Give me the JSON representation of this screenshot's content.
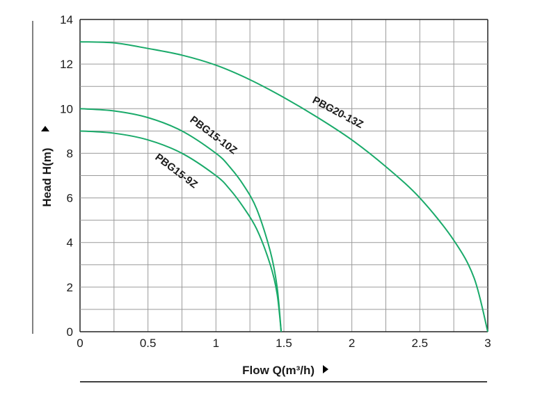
{
  "chart_data": {
    "type": "line",
    "xlabel": "Flow  Q(m³/h)",
    "ylabel": "Head  H(m)",
    "xlim": [
      0,
      3
    ],
    "ylim": [
      0,
      14
    ],
    "x_ticks": [
      "0",
      "0.5",
      "1",
      "1.5",
      "2",
      "2.5",
      "3"
    ],
    "y_ticks": [
      "0",
      "2",
      "4",
      "6",
      "8",
      "10",
      "12",
      "14"
    ],
    "grid": true,
    "line_color": "#1aaa6a",
    "series": [
      {
        "name": "PBG20-13Z",
        "x": [
          0,
          0.25,
          0.5,
          0.75,
          1.0,
          1.25,
          1.5,
          1.75,
          2.0,
          2.25,
          2.5,
          2.75,
          2.9,
          3.0
        ],
        "y": [
          13.0,
          12.95,
          12.7,
          12.4,
          11.95,
          11.3,
          10.5,
          9.6,
          8.6,
          7.4,
          6.0,
          4.1,
          2.4,
          0
        ]
      },
      {
        "name": "PBG15-10Z",
        "x": [
          0,
          0.25,
          0.5,
          0.75,
          1.0,
          1.1,
          1.2,
          1.3,
          1.4,
          1.45,
          1.48
        ],
        "y": [
          10.0,
          9.9,
          9.6,
          9.0,
          8.0,
          7.4,
          6.6,
          5.5,
          3.6,
          2.0,
          0
        ]
      },
      {
        "name": "PBG15-9Z",
        "x": [
          0,
          0.25,
          0.5,
          0.75,
          1.0,
          1.1,
          1.2,
          1.3,
          1.4,
          1.45,
          1.48
        ],
        "y": [
          9.0,
          8.9,
          8.6,
          8.0,
          7.0,
          6.4,
          5.6,
          4.6,
          3.0,
          1.7,
          0
        ]
      }
    ]
  }
}
